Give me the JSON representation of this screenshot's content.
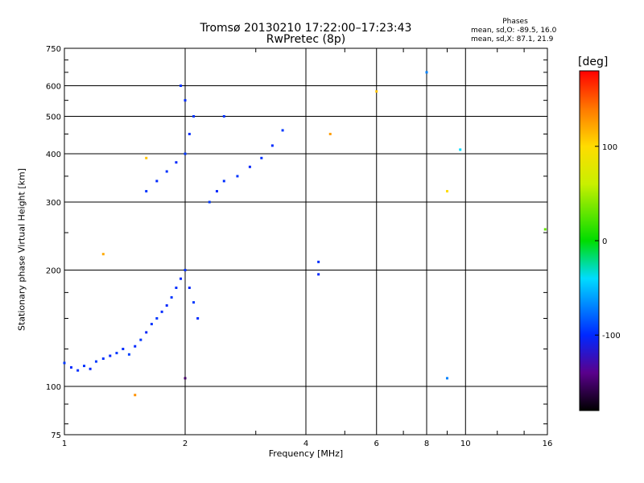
{
  "header": {
    "title": "Tromsø 20130210 17:22:00–17:23:43",
    "subtitle": "RwPretec (8p)",
    "phase_title": "Phases",
    "phase_o": "mean, sd,O: -89.5, 16.0",
    "phase_x": "mean, sd,X:  87.1, 21.9"
  },
  "chart_data": {
    "type": "scatter",
    "xlabel": "Frequency [MHz]",
    "ylabel": "Stationary phase Virtual Height [km]",
    "x_scale": "log",
    "y_scale": "log",
    "xlim": [
      1,
      16
    ],
    "ylim": [
      75,
      750
    ],
    "xticks": [
      1,
      2,
      4,
      6,
      8,
      10,
      16
    ],
    "xtick_labels": [
      "1",
      "2",
      "4",
      "6",
      "8",
      "10",
      "16"
    ],
    "yticks": [
      75,
      100,
      200,
      300,
      400,
      500,
      600,
      750
    ],
    "ytick_labels": [
      "75",
      "100",
      "200",
      "300",
      "400",
      "500",
      "600",
      "750"
    ],
    "grid": true,
    "colorbar": {
      "label": "[deg]",
      "range": [
        -180,
        180
      ],
      "ticks": [
        100,
        0,
        -100
      ],
      "tick_labels": [
        "100",
        "0",
        "-100"
      ]
    },
    "series": [
      {
        "points": [
          [
            1.0,
            115,
            -95
          ],
          [
            1.04,
            112,
            -100
          ],
          [
            1.08,
            110,
            -98
          ],
          [
            1.12,
            113,
            -96
          ],
          [
            1.16,
            111,
            -102
          ],
          [
            1.2,
            116,
            -94
          ],
          [
            1.25,
            118,
            -97
          ],
          [
            1.3,
            120,
            -101
          ],
          [
            1.35,
            122,
            -95
          ],
          [
            1.4,
            125,
            -99
          ],
          [
            1.45,
            121,
            -92
          ],
          [
            1.5,
            127,
            -100
          ],
          [
            1.55,
            132,
            -96
          ],
          [
            1.6,
            138,
            -103
          ],
          [
            1.65,
            145,
            -97
          ],
          [
            1.7,
            150,
            -95
          ],
          [
            1.75,
            156,
            -99
          ],
          [
            1.8,
            162,
            -101
          ],
          [
            1.85,
            170,
            -96
          ],
          [
            1.9,
            180,
            -98
          ],
          [
            1.95,
            190,
            -100
          ],
          [
            2.0,
            200,
            -97
          ],
          [
            2.05,
            180,
            -102
          ],
          [
            2.1,
            165,
            -95
          ],
          [
            2.15,
            150,
            -99
          ],
          [
            1.6,
            320,
            -96
          ],
          [
            1.7,
            340,
            -100
          ],
          [
            1.8,
            360,
            -97
          ],
          [
            1.9,
            380,
            -101
          ],
          [
            2.0,
            400,
            -95
          ],
          [
            2.05,
            450,
            -98
          ],
          [
            2.1,
            500,
            -96
          ],
          [
            2.0,
            550,
            -99
          ],
          [
            1.95,
            600,
            -97
          ],
          [
            2.3,
            300,
            -95
          ],
          [
            2.4,
            320,
            -100
          ],
          [
            2.5,
            340,
            -98
          ],
          [
            2.7,
            350,
            -96
          ],
          [
            2.9,
            370,
            -102
          ],
          [
            3.1,
            390,
            -97
          ],
          [
            3.3,
            420,
            -99
          ],
          [
            3.5,
            460,
            -95
          ],
          [
            2.5,
            500,
            -96
          ],
          [
            4.3,
            210,
            -98
          ],
          [
            4.3,
            195,
            -100
          ],
          [
            1.6,
            390,
            110
          ],
          [
            1.25,
            220,
            120
          ],
          [
            4.6,
            450,
            125
          ],
          [
            6.0,
            580,
            110
          ],
          [
            9.0,
            320,
            100
          ],
          [
            8.0,
            650,
            -70
          ],
          [
            9.7,
            410,
            -40
          ],
          [
            15.8,
            255,
            30
          ],
          [
            9.0,
            105,
            -70
          ],
          [
            2.0,
            105,
            -150
          ],
          [
            1.5,
            95,
            130
          ]
        ]
      }
    ]
  }
}
